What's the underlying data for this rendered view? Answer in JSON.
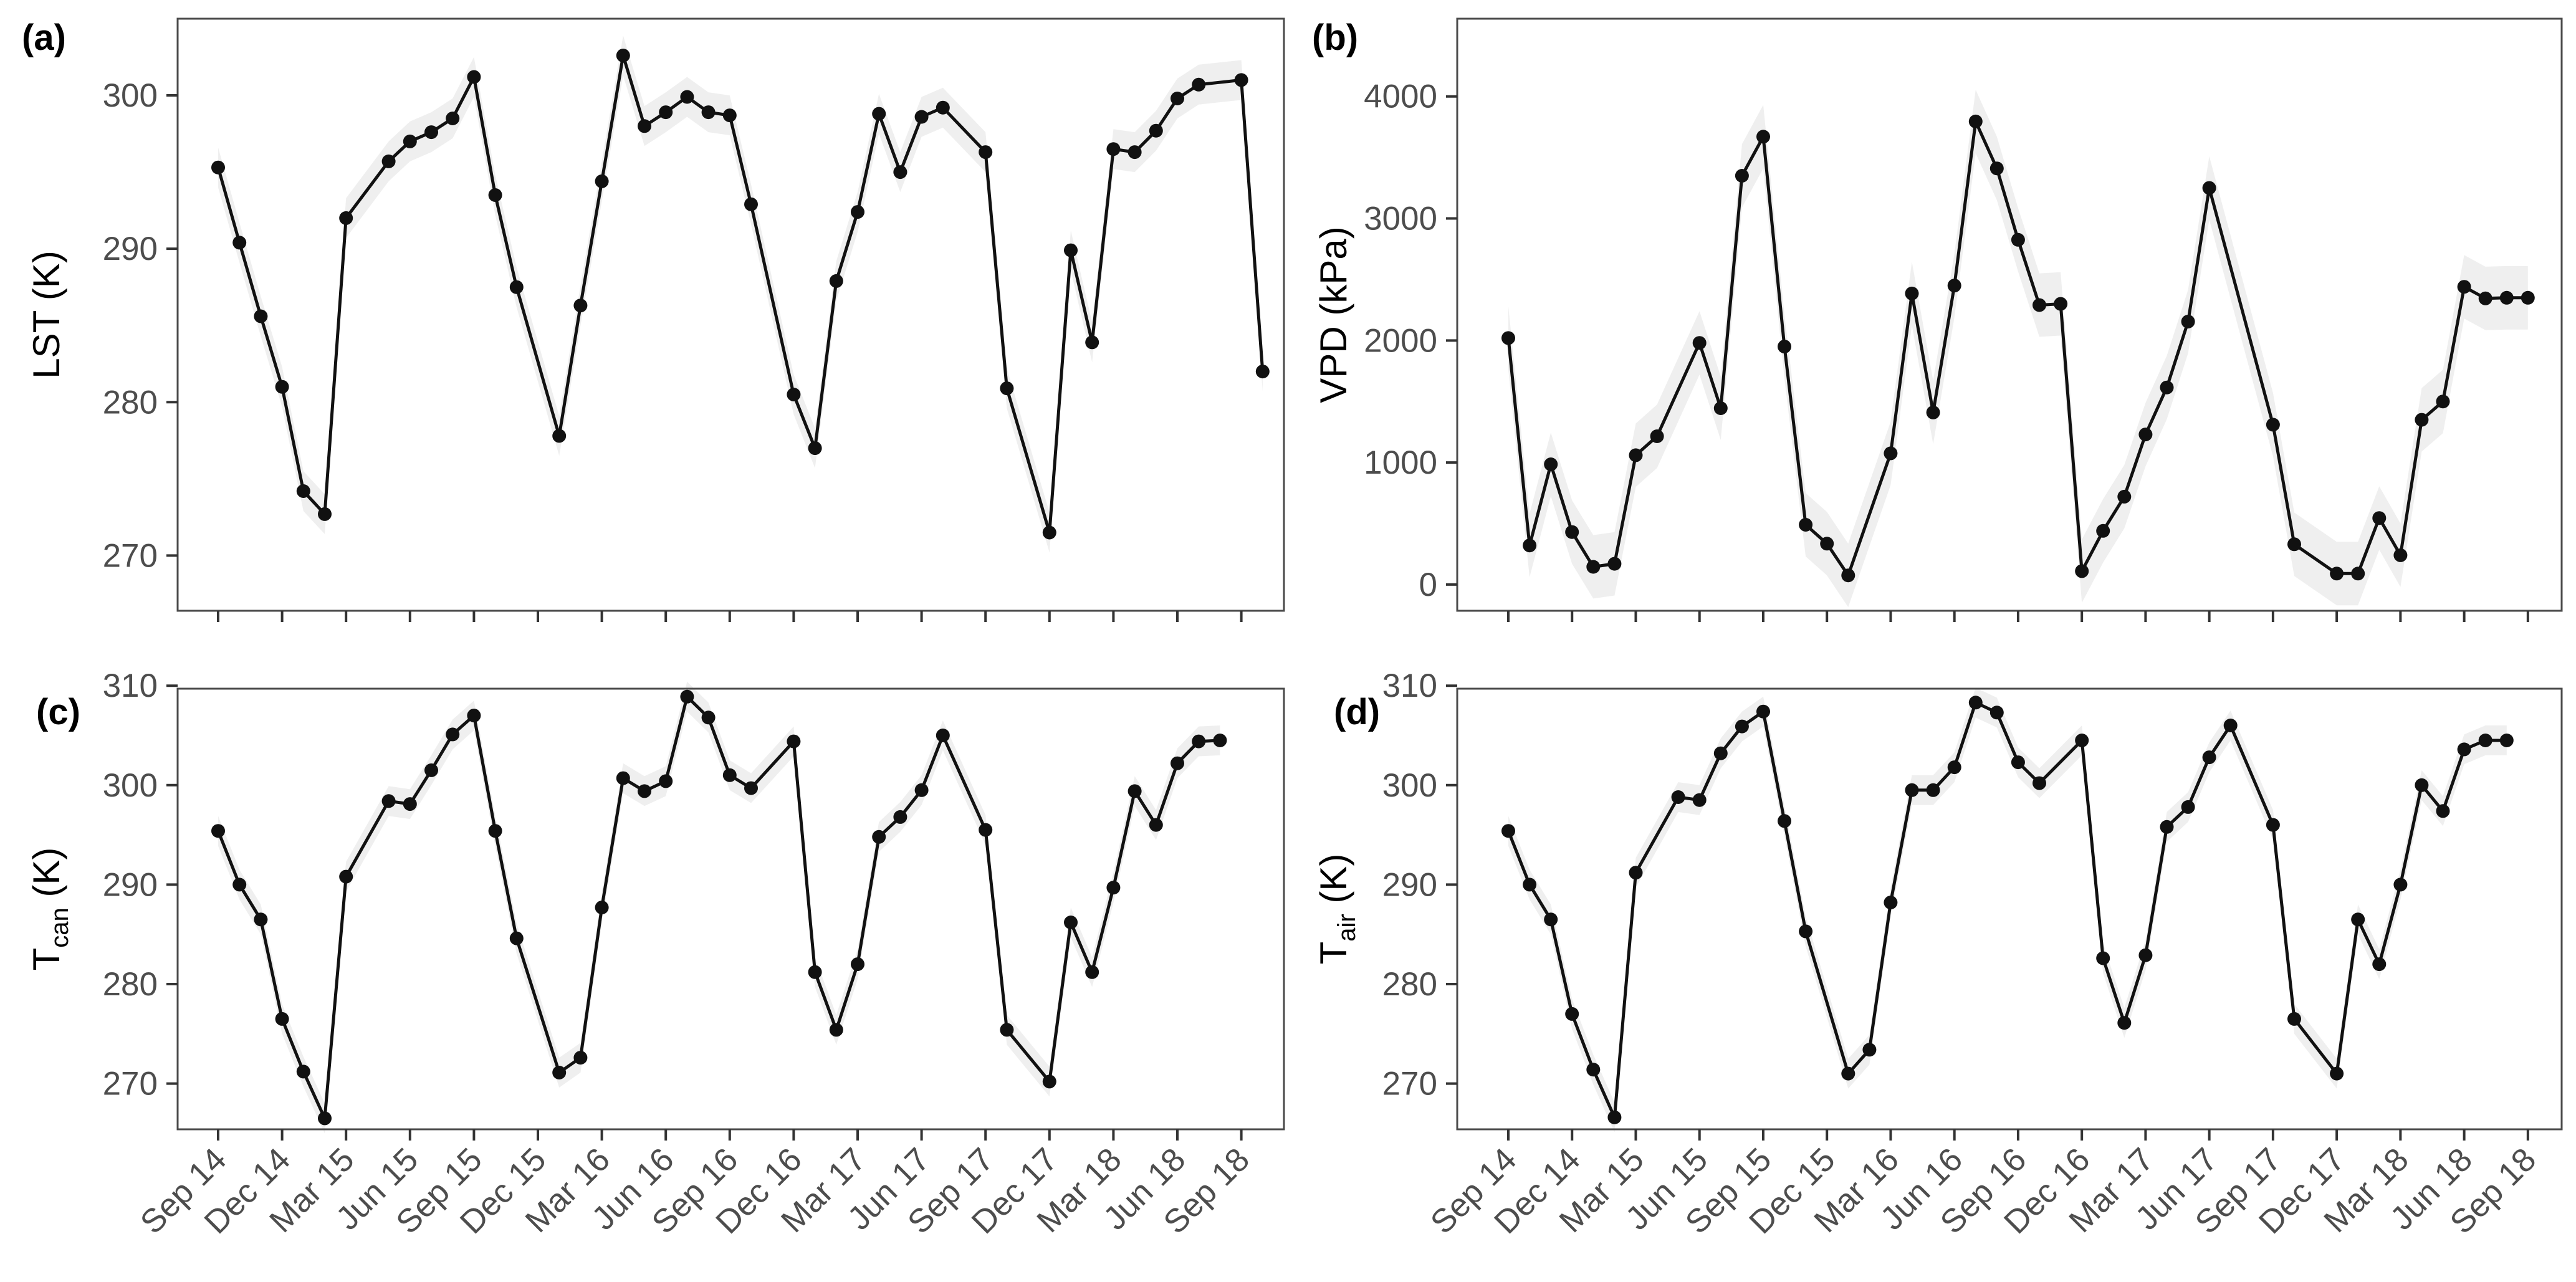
{
  "figure": {
    "type": "multi-panel-line-chart",
    "background": "#ffffff",
    "line_color": "#111111",
    "point_color": "#111111",
    "ribbon_color": "#e9e9e9",
    "tick_label_color": "#4d4d4d",
    "border_color": "#4a4a4a"
  },
  "chart_data": [
    {
      "type": "line",
      "panel": "a",
      "panel_label": "(a)",
      "title": "",
      "ylabel": {
        "main": "LST",
        "sub": "",
        "unit": " (K)"
      },
      "x": [
        "Sep 14",
        "Oct 14",
        "Nov 14",
        "Dec 14",
        "Jan 15",
        "Feb 15",
        "Mar 15",
        "Apr 15",
        "May 15",
        "Jun 15",
        "Jul 15",
        "Aug 15",
        "Sep 15",
        "Oct 15",
        "Nov 15",
        "Dec 15",
        "Jan 16",
        "Feb 16",
        "Mar 16",
        "Apr 16",
        "May 16",
        "Jun 16",
        "Jul 16",
        "Aug 16",
        "Sep 16",
        "Oct 16",
        "Nov 16",
        "Dec 16",
        "Jan 17",
        "Feb 17",
        "Mar 17",
        "Apr 17",
        "May 17",
        "Jun 17",
        "Jul 17",
        "Aug 17",
        "Sep 17",
        "Oct 17",
        "Nov 17",
        "Dec 17",
        "Jan 18",
        "Feb 18",
        "Mar 18",
        "Apr 18",
        "May 18",
        "Jun 18",
        "Jul 18",
        "Aug 18",
        "Sep 18",
        "Oct 18"
      ],
      "xtick_labels": [
        "Sep 14",
        "Dec 14",
        "Mar 15",
        "Jun 15",
        "Sep 15",
        "Dec 15",
        "Mar 16",
        "Jun 16",
        "Sep 16",
        "Dec 16",
        "Mar 17",
        "Jun 17",
        "Sep 17",
        "Dec 17",
        "Mar 18",
        "Jun 18",
        "Sep 18"
      ],
      "show_xtick_labels": false,
      "yticks": [
        270,
        280,
        290,
        300
      ],
      "ylim": [
        266.4,
        305.0
      ],
      "band_halfwidth": 1.3,
      "values": [
        295.3,
        290.4,
        285.6,
        281.0,
        274.2,
        272.7,
        292.0,
        null,
        295.7,
        297.0,
        297.6,
        298.5,
        301.2,
        293.5,
        287.5,
        null,
        277.8,
        286.3,
        294.4,
        302.6,
        298.0,
        298.9,
        299.9,
        298.9,
        298.7,
        292.9,
        null,
        280.5,
        277.0,
        287.9,
        292.4,
        298.8,
        295.0,
        298.6,
        299.2,
        null,
        296.3,
        280.9,
        null,
        271.5,
        289.9,
        283.9,
        296.5,
        296.3,
        297.7,
        299.8,
        300.7,
        null,
        301.0,
        282.0
      ]
    },
    {
      "type": "line",
      "panel": "b",
      "panel_label": "(b)",
      "title": "",
      "ylabel": {
        "main": "VPD",
        "sub": "",
        "unit": " (kPa)"
      },
      "x": [
        "Sep 14",
        "Oct 14",
        "Nov 14",
        "Dec 14",
        "Jan 15",
        "Feb 15",
        "Mar 15",
        "Apr 15",
        "May 15",
        "Jun 15",
        "Jul 15",
        "Aug 15",
        "Sep 15",
        "Oct 15",
        "Nov 15",
        "Dec 15",
        "Jan 16",
        "Feb 16",
        "Mar 16",
        "Apr 16",
        "May 16",
        "Jun 16",
        "Jul 16",
        "Aug 16",
        "Sep 16",
        "Oct 16",
        "Nov 16",
        "Dec 16",
        "Jan 17",
        "Feb 17",
        "Mar 17",
        "Apr 17",
        "May 17",
        "Jun 17",
        "Jul 17",
        "Aug 17",
        "Sep 17",
        "Oct 17",
        "Nov 17",
        "Dec 17",
        "Jan 18",
        "Feb 18",
        "Mar 18",
        "Apr 18",
        "May 18",
        "Jun 18",
        "Jul 18",
        "Aug 18",
        "Sep 18",
        "Oct 18"
      ],
      "xtick_labels": [
        "Sep 14",
        "Dec 14",
        "Mar 15",
        "Jun 15",
        "Sep 15",
        "Dec 15",
        "Mar 16",
        "Jun 16",
        "Sep 16",
        "Dec 16",
        "Mar 17",
        "Jun 17",
        "Sep 17",
        "Dec 17",
        "Mar 18",
        "Jun 18",
        "Sep 18"
      ],
      "show_xtick_labels": false,
      "yticks": [
        0,
        1000,
        2000,
        3000,
        4000
      ],
      "ylim": [
        -215,
        4637
      ],
      "band_halfwidth": 260,
      "values": [
        2020,
        320,
        985,
        430,
        145,
        170,
        1060,
        1215,
        null,
        1980,
        1445,
        3350,
        3670,
        1950,
        490,
        335,
        75,
        null,
        1075,
        2385,
        1410,
        2450,
        3795,
        3410,
        2825,
        2290,
        2300,
        110,
        440,
        720,
        1230,
        1615,
        2155,
        3250,
        null,
        null,
        1310,
        330,
        null,
        90,
        90,
        545,
        240,
        1350,
        1500,
        2440,
        2345,
        2350,
        2350,
        null
      ]
    },
    {
      "type": "line",
      "panel": "c",
      "panel_label": "(c)",
      "title": "",
      "ylabel": {
        "main": "T",
        "sub": "can",
        "unit": " (K)"
      },
      "x": [
        "Sep 14",
        "Oct 14",
        "Nov 14",
        "Dec 14",
        "Jan 15",
        "Feb 15",
        "Mar 15",
        "Apr 15",
        "May 15",
        "Jun 15",
        "Jul 15",
        "Aug 15",
        "Sep 15",
        "Oct 15",
        "Nov 15",
        "Dec 15",
        "Jan 16",
        "Feb 16",
        "Mar 16",
        "Apr 16",
        "May 16",
        "Jun 16",
        "Jul 16",
        "Aug 16",
        "Sep 16",
        "Oct 16",
        "Nov 16",
        "Dec 16",
        "Jan 17",
        "Feb 17",
        "Mar 17",
        "Apr 17",
        "May 17",
        "Jun 17",
        "Jul 17",
        "Aug 17",
        "Sep 17",
        "Oct 17",
        "Nov 17",
        "Dec 17",
        "Jan 18",
        "Feb 18",
        "Mar 18",
        "Apr 18",
        "May 18",
        "Jun 18",
        "Jul 18",
        "Aug 18",
        "Sep 18",
        "Oct 18"
      ],
      "xtick_labels": [
        "Sep 14",
        "Dec 14",
        "Mar 15",
        "Jun 15",
        "Sep 15",
        "Dec 15",
        "Mar 16",
        "Jun 16",
        "Sep 16",
        "Dec 16",
        "Mar 17",
        "Jun 17",
        "Sep 17",
        "Dec 17",
        "Mar 18",
        "Jun 18",
        "Sep 18"
      ],
      "show_xtick_labels": true,
      "yticks": [
        270,
        280,
        290,
        300,
        310
      ],
      "ylim": [
        265.4,
        309.7
      ],
      "band_halfwidth": 1.5,
      "values": [
        295.4,
        290.0,
        286.5,
        276.5,
        271.2,
        266.5,
        290.8,
        null,
        298.4,
        298.1,
        301.5,
        305.1,
        307.0,
        295.4,
        284.6,
        null,
        271.1,
        272.6,
        287.7,
        300.7,
        299.4,
        300.4,
        308.9,
        306.8,
        301.0,
        299.7,
        null,
        304.4,
        281.2,
        275.4,
        282.0,
        294.8,
        296.8,
        299.5,
        305.0,
        null,
        295.5,
        275.4,
        null,
        270.2,
        286.2,
        281.2,
        289.7,
        299.4,
        296.0,
        302.2,
        304.4,
        304.5,
        null,
        null
      ]
    },
    {
      "type": "line",
      "panel": "d",
      "panel_label": "(d)",
      "title": "",
      "ylabel": {
        "main": "T",
        "sub": "air",
        "unit": " (K)"
      },
      "x": [
        "Sep 14",
        "Oct 14",
        "Nov 14",
        "Dec 14",
        "Jan 15",
        "Feb 15",
        "Mar 15",
        "Apr 15",
        "May 15",
        "Jun 15",
        "Jul 15",
        "Aug 15",
        "Sep 15",
        "Oct 15",
        "Nov 15",
        "Dec 15",
        "Jan 16",
        "Feb 16",
        "Mar 16",
        "Apr 16",
        "May 16",
        "Jun 16",
        "Jul 16",
        "Aug 16",
        "Sep 16",
        "Oct 16",
        "Nov 16",
        "Dec 16",
        "Jan 17",
        "Feb 17",
        "Mar 17",
        "Apr 17",
        "May 17",
        "Jun 17",
        "Jul 17",
        "Aug 17",
        "Sep 17",
        "Oct 17",
        "Nov 17",
        "Dec 17",
        "Jan 18",
        "Feb 18",
        "Mar 18",
        "Apr 18",
        "May 18",
        "Jun 18",
        "Jul 18",
        "Aug 18",
        "Sep 18",
        "Oct 18"
      ],
      "xtick_labels": [
        "Sep 14",
        "Dec 14",
        "Mar 15",
        "Jun 15",
        "Sep 15",
        "Dec 15",
        "Mar 16",
        "Jun 16",
        "Sep 16",
        "Dec 16",
        "Mar 17",
        "Jun 17",
        "Sep 17",
        "Dec 17",
        "Mar 18",
        "Jun 18",
        "Sep 18"
      ],
      "show_xtick_labels": true,
      "yticks": [
        270,
        280,
        290,
        300,
        310
      ],
      "ylim": [
        265.4,
        309.7
      ],
      "band_halfwidth": 1.5,
      "values": [
        295.4,
        290.0,
        286.5,
        277.0,
        271.4,
        266.6,
        291.2,
        null,
        298.8,
        298.5,
        303.2,
        305.9,
        307.4,
        296.4,
        285.3,
        null,
        271.0,
        273.4,
        288.2,
        299.5,
        299.5,
        301.8,
        308.3,
        307.3,
        302.3,
        300.2,
        null,
        304.5,
        282.6,
        276.1,
        282.9,
        295.8,
        297.8,
        302.8,
        306.0,
        null,
        296.0,
        276.5,
        null,
        271.0,
        286.5,
        282.0,
        290.0,
        300.0,
        297.4,
        303.6,
        304.5,
        304.5,
        null,
        null
      ]
    }
  ]
}
